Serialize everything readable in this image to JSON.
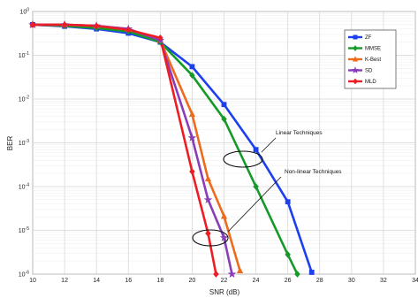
{
  "chart_data": {
    "type": "line",
    "title": "",
    "xlabel": "SNR  (dB)",
    "ylabel": "BER",
    "xlim": [
      10,
      34
    ],
    "ylim_log10": [
      -6,
      0
    ],
    "y_scale": "log",
    "grid": true,
    "legend_position": "top-right",
    "x_ticks": [
      "10",
      "12",
      "14",
      "16",
      "18",
      "20",
      "22",
      "24",
      "26",
      "28",
      "30",
      "32",
      "34"
    ],
    "y_ticks": [
      {
        "base": "10",
        "exp": "0"
      },
      {
        "base": "10",
        "exp": "-1"
      },
      {
        "base": "10",
        "exp": "-2"
      },
      {
        "base": "10",
        "exp": "-3"
      },
      {
        "base": "10",
        "exp": "-4"
      },
      {
        "base": "10",
        "exp": "-5"
      },
      {
        "base": "10",
        "exp": "-6"
      }
    ],
    "series": [
      {
        "name": "ZF",
        "color": "#1c3ff0",
        "marker": "square",
        "points": [
          [
            10,
            0.5
          ],
          [
            12,
            0.46
          ],
          [
            14,
            0.4
          ],
          [
            16,
            0.32
          ],
          [
            18,
            0.2
          ],
          [
            20,
            0.055
          ],
          [
            22,
            0.0075
          ],
          [
            24,
            0.0007
          ],
          [
            26,
            4.5e-05
          ],
          [
            27.5,
            1.1e-06
          ]
        ]
      },
      {
        "name": "MMSE",
        "color": "#159a2a",
        "marker": "diamond",
        "points": [
          [
            10,
            0.5
          ],
          [
            12,
            0.47
          ],
          [
            14,
            0.42
          ],
          [
            16,
            0.35
          ],
          [
            18,
            0.2
          ],
          [
            20,
            0.035
          ],
          [
            22,
            0.0035
          ],
          [
            24,
            0.0001
          ],
          [
            26,
            2.8e-06
          ],
          [
            26.6,
            1e-06
          ]
        ]
      },
      {
        "name": "K-Best",
        "color": "#ee6a1c",
        "marker": "triangle",
        "points": [
          [
            10,
            0.5
          ],
          [
            12,
            0.5
          ],
          [
            14,
            0.47
          ],
          [
            16,
            0.4
          ],
          [
            18,
            0.22
          ],
          [
            20,
            0.0045
          ],
          [
            21,
            0.00015
          ],
          [
            22,
            2.1e-05
          ],
          [
            23,
            1.2e-06
          ]
        ]
      },
      {
        "name": "SD",
        "color": "#8a3db8",
        "marker": "star",
        "points": [
          [
            10,
            0.5
          ],
          [
            12,
            0.5
          ],
          [
            14,
            0.47
          ],
          [
            16,
            0.4
          ],
          [
            18,
            0.22
          ],
          [
            20,
            0.0013
          ],
          [
            21,
            5e-05
          ],
          [
            22,
            6.8e-06
          ],
          [
            22.5,
            1e-06
          ]
        ]
      },
      {
        "name": "MLD",
        "color": "#ee1c24",
        "marker": "diamond",
        "points": [
          [
            10,
            0.5
          ],
          [
            12,
            0.5
          ],
          [
            14,
            0.47
          ],
          [
            16,
            0.38
          ],
          [
            18,
            0.25
          ],
          [
            20,
            0.00022
          ],
          [
            21,
            8.5e-06
          ],
          [
            21.5,
            1e-06
          ]
        ]
      }
    ],
    "annotations": [
      {
        "text": "Linear Techniques"
      },
      {
        "text": "Non-linear Techniques"
      }
    ]
  }
}
